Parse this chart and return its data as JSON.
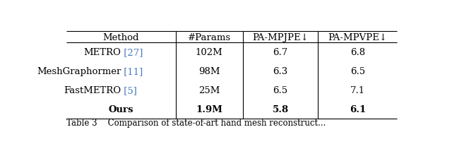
{
  "headers": [
    "Method",
    "#Params",
    "PA-MPJPE↓",
    "PA-MPVPE↓"
  ],
  "rows": [
    {
      "method": "METRO",
      "citation": " [27]",
      "params": "102M",
      "mpjpe": "6.7",
      "mpvpe": "6.8",
      "bold": false
    },
    {
      "method": "MeshGraphormer",
      "citation": " [11]",
      "params": "98M",
      "mpjpe": "6.3",
      "mpvpe": "6.5",
      "bold": false
    },
    {
      "method": "FastMETRO",
      "citation": " [5]",
      "params": "25M",
      "mpjpe": "6.5",
      "mpvpe": "7.1",
      "bold": false
    },
    {
      "method": "Ours",
      "citation": "",
      "params": "1.9M",
      "mpjpe": "5.8",
      "mpvpe": "6.1",
      "bold": true
    }
  ],
  "citation_color": "#4477bb",
  "text_color": "#000000",
  "background_color": "#ffffff",
  "fontsize": 9.5,
  "caption": "Table 3    Comparison of state-of-art hand mesh reconstruct..."
}
